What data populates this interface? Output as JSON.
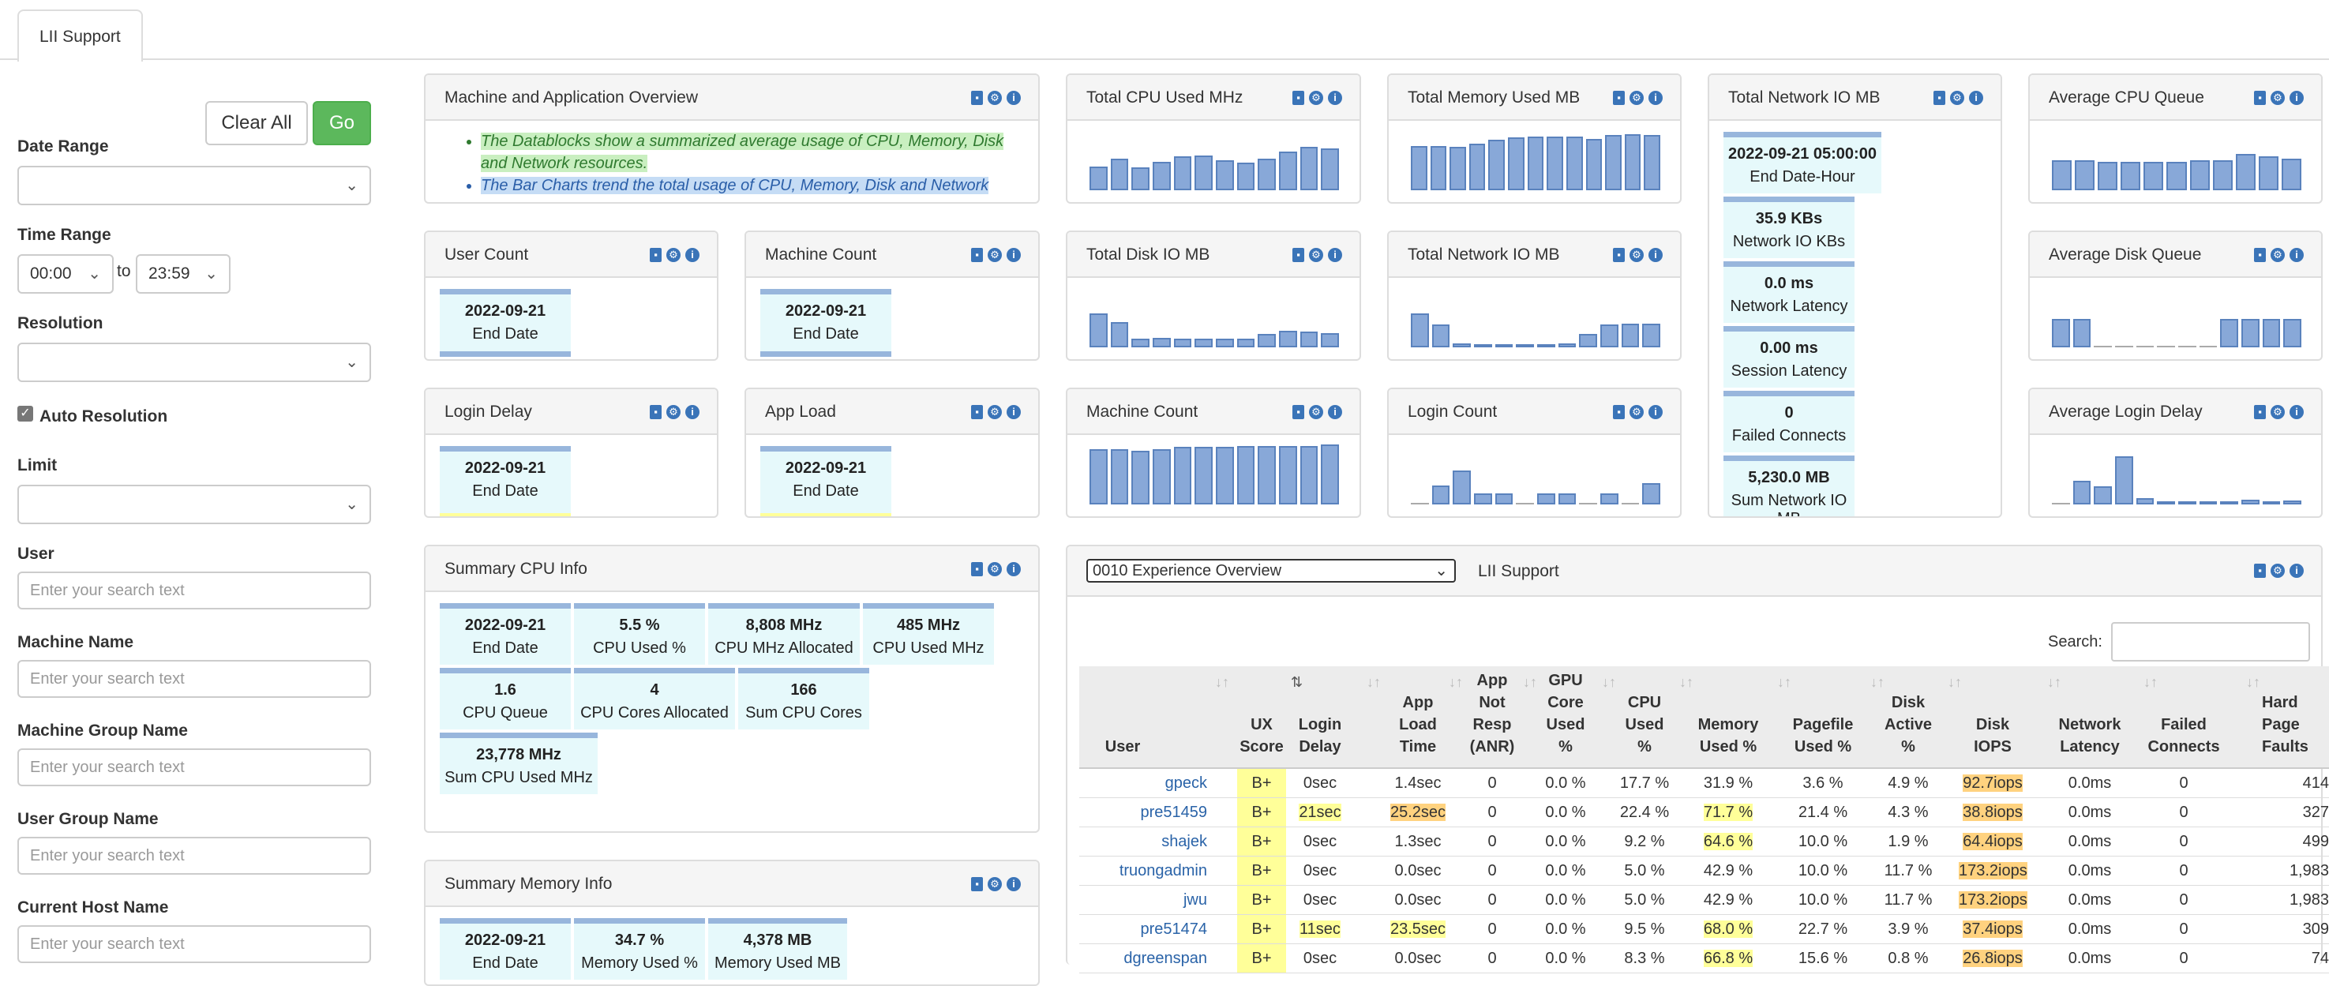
{
  "tab": {
    "label": "LII Support"
  },
  "sidebar": {
    "clear_all": "Clear All",
    "go": "Go",
    "date_range_label": "Date Range",
    "time_range_label": "Time Range",
    "time_from": "00:00",
    "time_to_sep": "to",
    "time_to": "23:59",
    "resolution_label": "Resolution",
    "auto_resolution_label": "Auto Resolution",
    "limit_label": "Limit",
    "user_label": "User",
    "user_placeholder": "Enter your search text",
    "machine_name_label": "Machine Name",
    "machine_name_placeholder": "Enter your search text",
    "machine_group_label": "Machine Group Name",
    "machine_group_placeholder": "Enter your search text",
    "user_group_label": "User Group Name",
    "user_group_placeholder": "Enter your search text",
    "host_label": "Current Host Name",
    "host_placeholder": "Enter your search text"
  },
  "overview": {
    "title": "Machine and Application Overview",
    "bullet1": "The Datablocks show a summarized average usage of CPU, Memory, Disk and Network resources.",
    "bullet2": "The Bar Charts trend the total usage of CPU, Memory, Disk and Network"
  },
  "panels": {
    "user_count": {
      "title": "User Count",
      "value": "2022-09-21",
      "label": "End Date"
    },
    "machine_count_db": {
      "title": "Machine Count",
      "value": "2022-09-21",
      "label": "End Date"
    },
    "login_delay": {
      "title": "Login Delay",
      "value": "2022-09-21",
      "label": "End Date"
    },
    "app_load": {
      "title": "App Load",
      "value": "2022-09-21",
      "label": "End Date"
    },
    "total_cpu": {
      "title": "Total CPU Used MHz"
    },
    "total_mem": {
      "title": "Total Memory Used MB"
    },
    "total_net": {
      "title": "Total Network IO MB"
    },
    "avg_cpu_queue": {
      "title": "Average CPU Queue"
    },
    "total_disk": {
      "title": "Total Disk IO MB"
    },
    "total_net2": {
      "title": "Total Network IO MB"
    },
    "avg_disk_queue": {
      "title": "Average Disk Queue"
    },
    "machine_count_chart": {
      "title": "Machine Count"
    },
    "login_count": {
      "title": "Login Count"
    },
    "avg_login_delay": {
      "title": "Average Login Delay"
    }
  },
  "network_blocks": [
    {
      "value": "2022-09-21 05:00:00",
      "label": "End Date-Hour"
    },
    {
      "value": "35.9 KBs",
      "label": "Network IO KBs"
    },
    {
      "value": "0.0 ms",
      "label": "Network Latency"
    },
    {
      "value": "0.00 ms",
      "label": "Session Latency"
    },
    {
      "value": "0",
      "label": "Failed Connects"
    },
    {
      "value": "5,230.0 MB",
      "label": "Sum Network IO MB"
    }
  ],
  "cpu_info": {
    "title": "Summary CPU Info",
    "blocks": [
      {
        "value": "2022-09-21",
        "label": "End Date"
      },
      {
        "value": "5.5 %",
        "label": "CPU Used %"
      },
      {
        "value": "8,808 MHz",
        "label": "CPU MHz Allocated"
      },
      {
        "value": "485 MHz",
        "label": "CPU Used MHz"
      },
      {
        "value": "1.6",
        "label": "CPU Queue"
      },
      {
        "value": "4",
        "label": "CPU Cores Allocated"
      },
      {
        "value": "166",
        "label": "Sum CPU Cores"
      },
      {
        "value": "23,778 MHz",
        "label": "Sum CPU Used MHz"
      }
    ]
  },
  "mem_info": {
    "title": "Summary Memory Info",
    "blocks": [
      {
        "value": "2022-09-21",
        "label": "End Date"
      },
      {
        "value": "34.7 %",
        "label": "Memory Used %"
      },
      {
        "value": "4,378 MB",
        "label": "Memory Used MB"
      }
    ]
  },
  "experience": {
    "select_value": "0010 Experience Overview",
    "title": "LII Support",
    "search_label": "Search:",
    "columns": [
      "User",
      "UX Score",
      "Login Delay",
      "App Load Time",
      "App Not Resp (ANR)",
      "GPU Core Used %",
      "CPU Used %",
      "Memory Used %",
      "Pagefile Used %",
      "Disk Active %",
      "Disk IOPS",
      "Network Latency",
      "Failed Connects",
      "Hard Page Faults"
    ],
    "rows": [
      [
        "gpeck",
        "B+",
        "0sec",
        "1.4sec",
        "0",
        "0.0 %",
        "17.7 %",
        "31.9 %",
        "3.6 %",
        "4.9 %",
        "92.7iops",
        "0.0ms",
        "0",
        "414"
      ],
      [
        "pre51459",
        "B+",
        "21sec",
        "25.2sec",
        "0",
        "0.0 %",
        "22.4 %",
        "71.7 %",
        "21.4 %",
        "4.3 %",
        "38.8iops",
        "0.0ms",
        "0",
        "327"
      ],
      [
        "shajek",
        "B+",
        "0sec",
        "1.3sec",
        "0",
        "0.0 %",
        "9.2 %",
        "64.6 %",
        "10.0 %",
        "1.9 %",
        "64.4iops",
        "0.0ms",
        "0",
        "499"
      ],
      [
        "truongadmin",
        "B+",
        "0sec",
        "0.0sec",
        "0",
        "0.0 %",
        "5.0 %",
        "42.9 %",
        "10.0 %",
        "11.7 %",
        "173.2iops",
        "0.0ms",
        "0",
        "1,983"
      ],
      [
        "jwu",
        "B+",
        "0sec",
        "0.0sec",
        "0",
        "0.0 %",
        "5.0 %",
        "42.9 %",
        "10.0 %",
        "11.7 %",
        "173.2iops",
        "0.0ms",
        "0",
        "1,983"
      ],
      [
        "pre51474",
        "B+",
        "11sec",
        "23.5sec",
        "0",
        "0.0 %",
        "9.5 %",
        "68.0 %",
        "22.7 %",
        "3.9 %",
        "37.4iops",
        "0.0ms",
        "0",
        "309"
      ],
      [
        "dgreenspan",
        "B+",
        "0sec",
        "0.0sec",
        "0",
        "0.0 %",
        "8.3 %",
        "66.8 %",
        "15.6 %",
        "0.8 %",
        "26.8iops",
        "0.0ms",
        "0",
        "74"
      ]
    ]
  },
  "chart_data": [
    {
      "type": "bar",
      "title": "Total CPU Used MHz",
      "values": [
        40,
        52,
        38,
        48,
        56,
        58,
        50,
        46,
        52,
        64,
        72,
        70
      ]
    },
    {
      "type": "bar",
      "title": "Total Memory Used MB",
      "values": [
        74,
        74,
        72,
        78,
        84,
        88,
        90,
        90,
        90,
        86,
        92,
        94,
        92
      ]
    },
    {
      "type": "bar",
      "title": "Average CPU Queue",
      "values": [
        50,
        50,
        48,
        48,
        48,
        48,
        50,
        50,
        60,
        56,
        52
      ]
    },
    {
      "type": "bar",
      "title": "Total Disk IO MB",
      "values": [
        56,
        42,
        14,
        16,
        14,
        14,
        14,
        14,
        22,
        28,
        26,
        24
      ]
    },
    {
      "type": "bar",
      "title": "Total Network IO MB",
      "values": [
        56,
        38,
        6,
        4,
        2,
        2,
        2,
        6,
        22,
        38,
        40,
        40
      ]
    },
    {
      "type": "bar",
      "title": "Average Disk Queue",
      "values": [
        48,
        48,
        0,
        0,
        0,
        0,
        0,
        0,
        48,
        48,
        48,
        48
      ]
    },
    {
      "type": "bar",
      "title": "Machine Count",
      "values": [
        92,
        92,
        90,
        92,
        96,
        96,
        96,
        98,
        98,
        98,
        98,
        100
      ]
    },
    {
      "type": "bar",
      "title": "Login Count",
      "values": [
        0,
        32,
        56,
        18,
        18,
        0,
        18,
        18,
        0,
        18,
        0,
        36
      ]
    },
    {
      "type": "bar",
      "title": "Average Login Delay",
      "values": [
        0,
        40,
        30,
        80,
        10,
        2,
        4,
        4,
        2,
        8,
        4,
        6
      ]
    }
  ]
}
